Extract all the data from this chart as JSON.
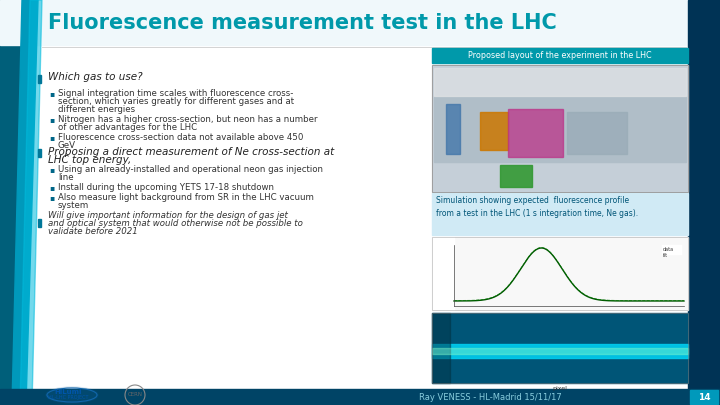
{
  "title": "Fluorescence measurement test in the LHC",
  "subtitle_box": "Proposed layout of the experiment in the LHC",
  "title_color": "#0099aa",
  "title_fontsize": 15,
  "bg_color": "#ffffff",
  "bottom_bar_color": "#004466",
  "slide_number": "14",
  "footer_text": "Ray VENESS - HL-Madrid 15/11/17",
  "header_box_color": "#0099aa",
  "section1_header": "Which gas to use?",
  "bullets1": [
    "Signal integration time scales with fluorescence cross-\nsection, which varies greatly for different gases and at\ndifferent energies",
    "Nitrogen has a higher cross-section, but neon has a number\nof other advantages for the LHC",
    "Fluorescence cross-section data not available above 450\nGeV"
  ],
  "section2_header": "Proposing a direct measurement of Ne cross-section at\nLHC top energy,",
  "bullets2": [
    "Using an already-installed and operational neon gas injection\nline",
    "Install during the upcoming YETS 17-18 shutdown",
    "Also measure light background from SR in the LHC vacuum\nsystem"
  ],
  "section3": "Will give important information for the design of gas jet\nand optical system that would otherwise not be possible to\nvalidate before 2021",
  "sim_caption": "Simulation showing expected  fluorescence profile\nfrom a test in the LHC (1 s integration time, Ne gas).",
  "sim_caption_color": "#005577",
  "sim_box_color": "#d0eaf5",
  "accent_left_dark": "#006688",
  "accent_left_mid": "#0099bb",
  "accent_left_light": "#00bbdd"
}
